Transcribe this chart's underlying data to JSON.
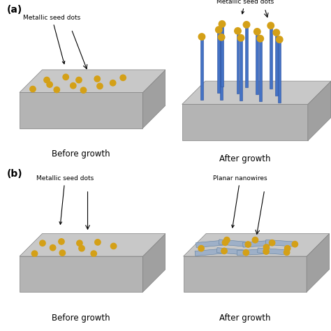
{
  "bg_color": "#ffffff",
  "substrate_top_color": "#c8c8c8",
  "substrate_side_color": "#a0a0a0",
  "substrate_front_color": "#b4b4b4",
  "dot_color": "#d4a017",
  "nanowire_color": "#4472c4",
  "nanowire_edge_color": "#2a4f9e",
  "planar_wire_color": "#9eb0c8",
  "planar_wire_edge": "#6080a0",
  "text_color": "#000000",
  "panel_label_a": "(a)",
  "panel_label_b": "(b)",
  "before_label": "Before growth",
  "after_label": "After growth",
  "metallic_label": "Metallic seed dots",
  "planar_label": "Planar nanowires"
}
